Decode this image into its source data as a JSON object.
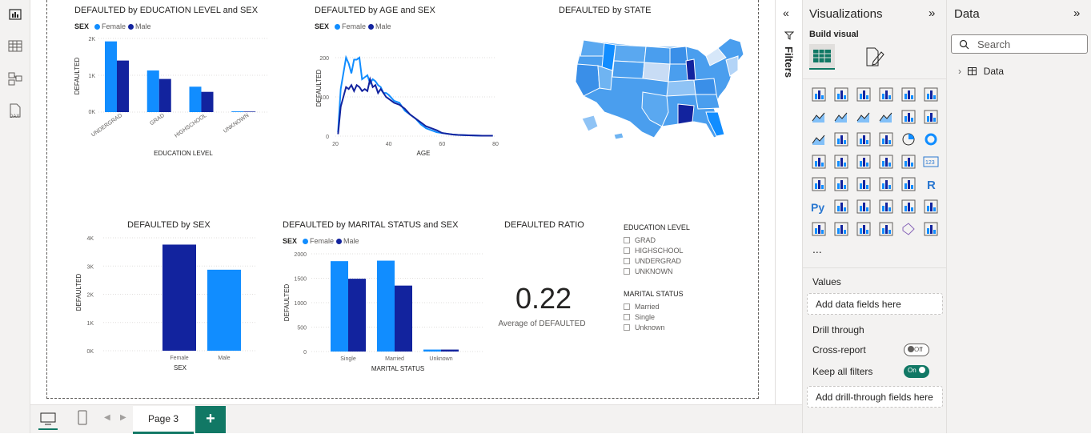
{
  "left_rail": {
    "icons": [
      "report-view-icon",
      "table-view-icon",
      "model-view-icon",
      "dax-query-icon"
    ],
    "dax_label": "DAX"
  },
  "visuals": {
    "edu": {
      "title": "DEFAULTED by EDUCATION LEVEL and SEX",
      "legend_title": "SEX",
      "legend": [
        "Female",
        "Male"
      ],
      "ylabel": "DEFAULTED",
      "xlabel": "EDUCATION LEVEL",
      "yticks": [
        "2K",
        "1K",
        "0K"
      ]
    },
    "age": {
      "title": "DEFAULTED by AGE and SEX",
      "legend_title": "SEX",
      "legend": [
        "Female",
        "Male"
      ],
      "ylabel": "DEFAULTED",
      "xlabel": "AGE",
      "yticks": [
        "200",
        "100",
        "0"
      ],
      "xticks": [
        "20",
        "40",
        "60",
        "80"
      ]
    },
    "state": {
      "title": "DEFAULTED by STATE"
    },
    "sex": {
      "title": "DEFAULTED by SEX",
      "ylabel": "DEFAULTED",
      "xlabel": "SEX",
      "yticks": [
        "4K",
        "3K",
        "2K",
        "1K",
        "0K"
      ]
    },
    "marital": {
      "title": "DEFAULTED by MARITAL STATUS and SEX",
      "legend_title": "SEX",
      "legend": [
        "Female",
        "Male"
      ],
      "ylabel": "DEFAULTED",
      "xlabel": "MARITAL STATUS",
      "yticks": [
        "2000",
        "1500",
        "1000",
        "500",
        "0"
      ]
    },
    "ratio": {
      "title": "DEFAULTED RATIO",
      "value": "0.22",
      "caption": "Average of DEFAULTED"
    },
    "slicer_edu": {
      "title": "EDUCATION LEVEL",
      "items": [
        "GRAD",
        "HIGHSCHOOL",
        "UNDERGRAD",
        "UNKNOWN"
      ]
    },
    "slicer_mar": {
      "title": "MARITAL STATUS",
      "items": [
        "Married",
        "Single",
        "Unknown"
      ]
    }
  },
  "chart_data": [
    {
      "type": "bar",
      "title": "DEFAULTED by EDUCATION LEVEL and SEX",
      "xlabel": "EDUCATION LEVEL",
      "ylabel": "DEFAULTED",
      "categories": [
        "UNDERGRAD",
        "GRAD",
        "HIGHSCHOOL",
        "UNKNOWN"
      ],
      "series": [
        {
          "name": "Female",
          "values": [
            1920,
            1130,
            690,
            20
          ]
        },
        {
          "name": "Male",
          "values": [
            1400,
            900,
            550,
            15
          ]
        }
      ],
      "ylim": [
        0,
        2000
      ]
    },
    {
      "type": "line",
      "title": "DEFAULTED by AGE and SEX",
      "xlabel": "AGE",
      "ylabel": "DEFAULTED",
      "x": [
        21,
        22,
        23,
        24,
        25,
        26,
        27,
        28,
        29,
        30,
        31,
        32,
        33,
        34,
        35,
        36,
        37,
        38,
        39,
        40,
        42,
        44,
        46,
        48,
        50,
        52,
        54,
        56,
        58,
        60,
        62,
        64,
        66,
        70,
        75,
        79
      ],
      "series": [
        {
          "name": "Female",
          "values": [
            10,
            120,
            160,
            200,
            185,
            160,
            195,
            195,
            200,
            145,
            150,
            155,
            135,
            145,
            140,
            130,
            125,
            110,
            110,
            105,
            90,
            85,
            65,
            55,
            45,
            30,
            20,
            15,
            10,
            8,
            6,
            4,
            3,
            2,
            1,
            1
          ]
        },
        {
          "name": "Male",
          "values": [
            5,
            75,
            100,
            125,
            120,
            130,
            115,
            130,
            125,
            115,
            120,
            115,
            145,
            125,
            130,
            110,
            120,
            110,
            100,
            95,
            85,
            80,
            70,
            55,
            45,
            35,
            25,
            20,
            15,
            8,
            6,
            4,
            3,
            2,
            1,
            1
          ]
        }
      ],
      "xlim": [
        20,
        80
      ],
      "ylim": [
        0,
        200
      ]
    },
    {
      "type": "bar",
      "title": "DEFAULTED by SEX",
      "xlabel": "SEX",
      "ylabel": "DEFAULTED",
      "categories": [
        "Female",
        "Male"
      ],
      "values": [
        3760,
        2870
      ],
      "ylim": [
        0,
        4000
      ]
    },
    {
      "type": "bar",
      "title": "DEFAULTED by MARITAL STATUS and SEX",
      "xlabel": "MARITAL STATUS",
      "ylabel": "DEFAULTED",
      "categories": [
        "Single",
        "Married",
        "Unknown"
      ],
      "series": [
        {
          "name": "Female",
          "values": [
            1850,
            1860,
            40
          ]
        },
        {
          "name": "Male",
          "values": [
            1490,
            1350,
            40
          ]
        }
      ],
      "ylim": [
        0,
        2000
      ]
    }
  ],
  "colors": {
    "female": "#118dff",
    "male": "#12239e",
    "accent": "#117865"
  },
  "filters": {
    "label": "Filters"
  },
  "viz_pane": {
    "title": "Visualizations",
    "build_visual": "Build visual",
    "more": "...",
    "values_label": "Values",
    "values_placeholder": "Add data fields here",
    "drill_title": "Drill through",
    "cross_report": "Cross-report",
    "cross_report_state": "Off",
    "keep_filters": "Keep all filters",
    "keep_filters_state": "On",
    "drill_placeholder": "Add drill-through fields here"
  },
  "data_pane": {
    "title": "Data",
    "search_placeholder": "Search",
    "tree_item": "Data"
  },
  "bottom_bar": {
    "page_tab": "Page 3",
    "add_page": "+"
  }
}
